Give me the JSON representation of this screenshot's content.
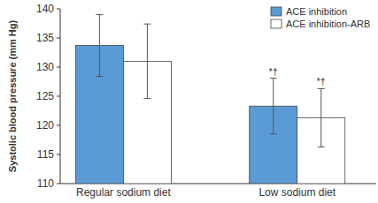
{
  "chart_data": {
    "type": "bar",
    "y_label": "Systolic blood pressure (mm Hg)",
    "categories": [
      "Regular sodium diet",
      "Low sodium diet"
    ],
    "series": [
      {
        "name": "ACE inhibition",
        "color": "#5b9bd5",
        "values": [
          133.7,
          123.3
        ],
        "errors": [
          5.3,
          4.8
        ],
        "annotations": [
          null,
          "*†"
        ]
      },
      {
        "name": "ACE inhibition-ARB",
        "color": "#ffffff",
        "values": [
          131.0,
          121.3
        ],
        "errors": [
          6.4,
          5.0
        ],
        "annotations": [
          null,
          "*†"
        ]
      }
    ],
    "ylim": [
      110,
      140
    ],
    "yticks": [
      110,
      115,
      120,
      125,
      130,
      135,
      140
    ],
    "legend": "upper right",
    "grid": false
  }
}
